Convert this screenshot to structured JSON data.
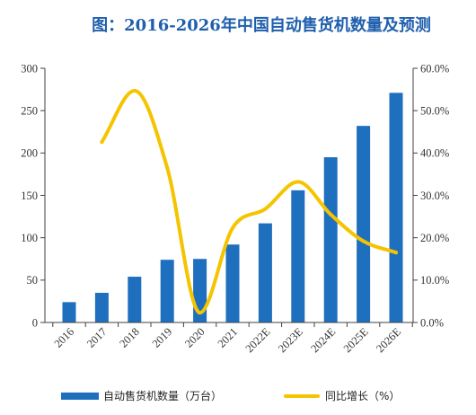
{
  "chart_data": {
    "type": "bar",
    "title": "图：2016-2026年中国自动售货机数量及预测",
    "categories": [
      "2016",
      "2017",
      "2018",
      "2019",
      "2020",
      "2021",
      "2022E",
      "2023E",
      "2024E",
      "2025E",
      "2026E"
    ],
    "series": [
      {
        "name": "自动售货机数量（万台）",
        "type": "bar",
        "axis": "left",
        "values": [
          24,
          35,
          54,
          74,
          75,
          92,
          117,
          156,
          195,
          232,
          271
        ]
      },
      {
        "name": "同比增长（%）",
        "type": "line",
        "axis": "right",
        "values": [
          null,
          42.6,
          54.7,
          36.5,
          2.3,
          22.3,
          26.8,
          33.2,
          25.5,
          19.2,
          16.5
        ]
      }
    ],
    "y_left": {
      "range": [
        0,
        300
      ],
      "ticks": [
        "0",
        "50",
        "100",
        "150",
        "200",
        "250",
        "300"
      ]
    },
    "y_right": {
      "range": [
        0,
        60
      ],
      "ticks": [
        "0.0%",
        "10.0%",
        "20.0%",
        "30.0%",
        "40.0%",
        "50.0%",
        "60.0%"
      ]
    },
    "grid": false,
    "legend_position": "bottom"
  },
  "colors": {
    "title": "#1F5FAD",
    "bar": "#1F6FBF",
    "line": "#F5C400",
    "axis": "#404040",
    "text": "#333333"
  }
}
